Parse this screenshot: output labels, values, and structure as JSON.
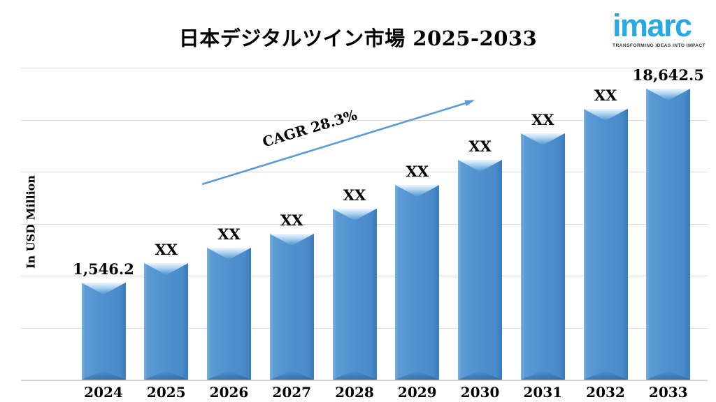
{
  "header": {
    "title": "日本デジタルツイン市場 2025-2033"
  },
  "logo": {
    "brand": "imarc",
    "tagline": "TRANSFORMING IDEAS INTO IMPACT",
    "brand_color": "#29a9e1",
    "tagline_color": "#333333"
  },
  "chart_data": {
    "type": "bar",
    "title": "日本デジタルツイン市場 2025-2033",
    "xlabel": "",
    "ylabel": "In USD Million",
    "legend": "none",
    "grid": "horizontal",
    "gridline_divisions": 6,
    "categories": [
      "2024",
      "2025",
      "2026",
      "2027",
      "2028",
      "2029",
      "2030",
      "2031",
      "2032",
      "2033"
    ],
    "value_labels": [
      "1,546.2",
      "XX",
      "XX",
      "XX",
      "XX",
      "XX",
      "XX",
      "XX",
      "XX",
      "18,642.5"
    ],
    "known_values": {
      "2024": 1546.2,
      "2033": 18642.5
    },
    "bar_heights_relative": [
      0.311,
      0.374,
      0.423,
      0.468,
      0.548,
      0.624,
      0.705,
      0.79,
      0.868,
      0.933
    ],
    "annotation": {
      "text": "CAGR 28.3%"
    },
    "colors": {
      "bar": "#4f92cf",
      "bar_highlight": "#b7d9f2",
      "arrow": "#5b9bd5",
      "gridline": "#dcdcdc",
      "axis": "#d0d0d0",
      "text": "#000000"
    }
  }
}
